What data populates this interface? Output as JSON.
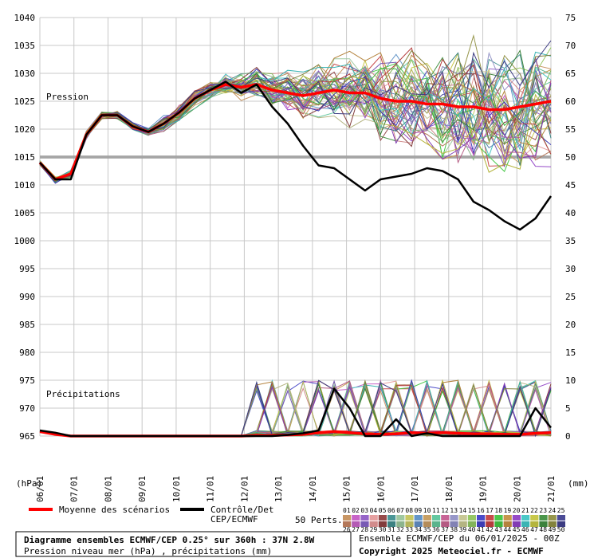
{
  "chart_data": {
    "type": "line",
    "title": "Diagramme ensembles ECMWF/CEP 0.25° sur 360h : 37N 2.8W",
    "subtitle": "Pression niveau mer (hPa) , précipitations (mm)",
    "run_label": "Ensemble ECMWF/CEP du 06/01/2025 - 00Z",
    "copyright": "Copyright 2025 Meteociel.fr - ECMWF",
    "panel_labels": {
      "pressure": "Pression",
      "precip": "Précipitations"
    },
    "y_left_unit": "(hPa)",
    "y_right_unit": "(mm)",
    "y_left_ticks": [
      1040,
      1035,
      1030,
      1025,
      1020,
      1015,
      1010,
      1005,
      1000,
      995,
      990,
      985,
      980,
      975,
      970,
      965
    ],
    "y_right_ticks": [
      75,
      70,
      65,
      60,
      55,
      50,
      45,
      40,
      35,
      30,
      25,
      20,
      15,
      10,
      5,
      0
    ],
    "ylim_left": [
      965,
      1040
    ],
    "ylim_right": [
      0,
      75
    ],
    "x_ticks": [
      "06/01",
      "07/01",
      "08/01",
      "09/01",
      "10/01",
      "11/01",
      "12/01",
      "13/01",
      "14/01",
      "15/01",
      "16/01",
      "17/01",
      "18/01",
      "19/01",
      "20/01",
      "21/01"
    ],
    "reference_line_hpa": 1015,
    "grid": true,
    "legend": {
      "mean": "Moyenne des scénarios",
      "control_line1": "Contrôle/Det",
      "control_line2": "CEP/ECMWF",
      "perts": "50 Perts."
    },
    "members_row1": [
      "01",
      "02",
      "03",
      "04",
      "05",
      "06",
      "07",
      "08",
      "09",
      "10",
      "11",
      "12",
      "13",
      "14",
      "15",
      "16",
      "17",
      "18",
      "19",
      "20",
      "21",
      "22",
      "23",
      "24",
      "25"
    ],
    "members_row2": [
      "26",
      "27",
      "28",
      "29",
      "30",
      "31",
      "32",
      "33",
      "34",
      "35",
      "36",
      "37",
      "38",
      "39",
      "40",
      "41",
      "42",
      "43",
      "44",
      "45",
      "46",
      "47",
      "48",
      "49",
      "50"
    ],
    "colors": {
      "mean": "#ff0000",
      "control": "#000000",
      "grid": "#c8c8c8",
      "reference": "#999999",
      "members": [
        "#c89664",
        "#c864c8",
        "#9664c8",
        "#e6a0a0",
        "#964b4b",
        "#4b9696",
        "#a0c8a0",
        "#c8c864",
        "#6496c8",
        "#c8a064",
        "#64c8a0",
        "#c86496",
        "#9696c8",
        "#c8c896",
        "#96c864",
        "#4b4bc8",
        "#c84b4b",
        "#4bc84b",
        "#c8964b",
        "#964bc8",
        "#4bc8c8",
        "#c8c84b",
        "#4b964b",
        "#96964b",
        "#4b4b96",
        "#b4785a",
        "#b45ab4",
        "#785ab4",
        "#d28c8c",
        "#823c3c",
        "#3c8282",
        "#8cb48c",
        "#b4b45a",
        "#5a82b4",
        "#b48c5a",
        "#5ab48c",
        "#b45a82",
        "#8282b4",
        "#b4b482",
        "#82b45a",
        "#3c3cb4",
        "#b43c3c",
        "#3cb43c",
        "#b4823c",
        "#823cb4",
        "#3cb4b4",
        "#b4b43c",
        "#3c823c",
        "#82823c",
        "#3c3c82"
      ]
    },
    "series": [
      {
        "name": "Moyenne des scénarios",
        "panel": "pressure",
        "values": [
          1014,
          1011,
          1012,
          1019,
          1022.5,
          1022.5,
          1020.5,
          1019.5,
          1021,
          1023,
          1025.5,
          1027,
          1028,
          1027.5,
          1028,
          1027,
          1026.5,
          1026,
          1026.5,
          1027,
          1026.5,
          1026.5,
          1025.5,
          1025,
          1025,
          1024.5,
          1024.5,
          1024,
          1024,
          1023.5,
          1023.5,
          1024,
          1024.5,
          1025
        ]
      },
      {
        "name": "Contrôle/Det CEP/ECMWF",
        "panel": "pressure",
        "values": [
          1014,
          1011,
          1011,
          1019,
          1022.5,
          1022.5,
          1020.5,
          1019.5,
          1021,
          1023,
          1025.5,
          1027,
          1028.5,
          1026.5,
          1028,
          1024,
          1021,
          1017,
          1013.5,
          1013,
          1011,
          1009,
          1011,
          1011.5,
          1012,
          1013,
          1012.5,
          1011,
          1007,
          1005.5,
          1003.5,
          1002,
          1004,
          1008
        ]
      },
      {
        "name": "Moyenne des scénarios",
        "panel": "precip",
        "values": [
          0.8,
          0.3,
          0,
          0,
          0,
          0,
          0,
          0,
          0,
          0,
          0,
          0,
          0,
          0,
          0.1,
          0.1,
          0.2,
          0.3,
          0.6,
          0.8,
          0.6,
          0.4,
          0.3,
          0.4,
          0.6,
          0.5,
          0.6,
          0.5,
          0.4,
          0.4,
          0.3,
          0.3,
          0.5,
          0.6
        ]
      },
      {
        "name": "Contrôle/Det CEP/ECMWF",
        "panel": "precip",
        "values": [
          1,
          0.6,
          0,
          0,
          0,
          0,
          0,
          0,
          0,
          0,
          0,
          0,
          0,
          0,
          0,
          0,
          0.2,
          0.5,
          1,
          8.5,
          5,
          0,
          0,
          3,
          0,
          0.5,
          0,
          0,
          0,
          0,
          0,
          0,
          5,
          1.5
        ]
      }
    ]
  }
}
